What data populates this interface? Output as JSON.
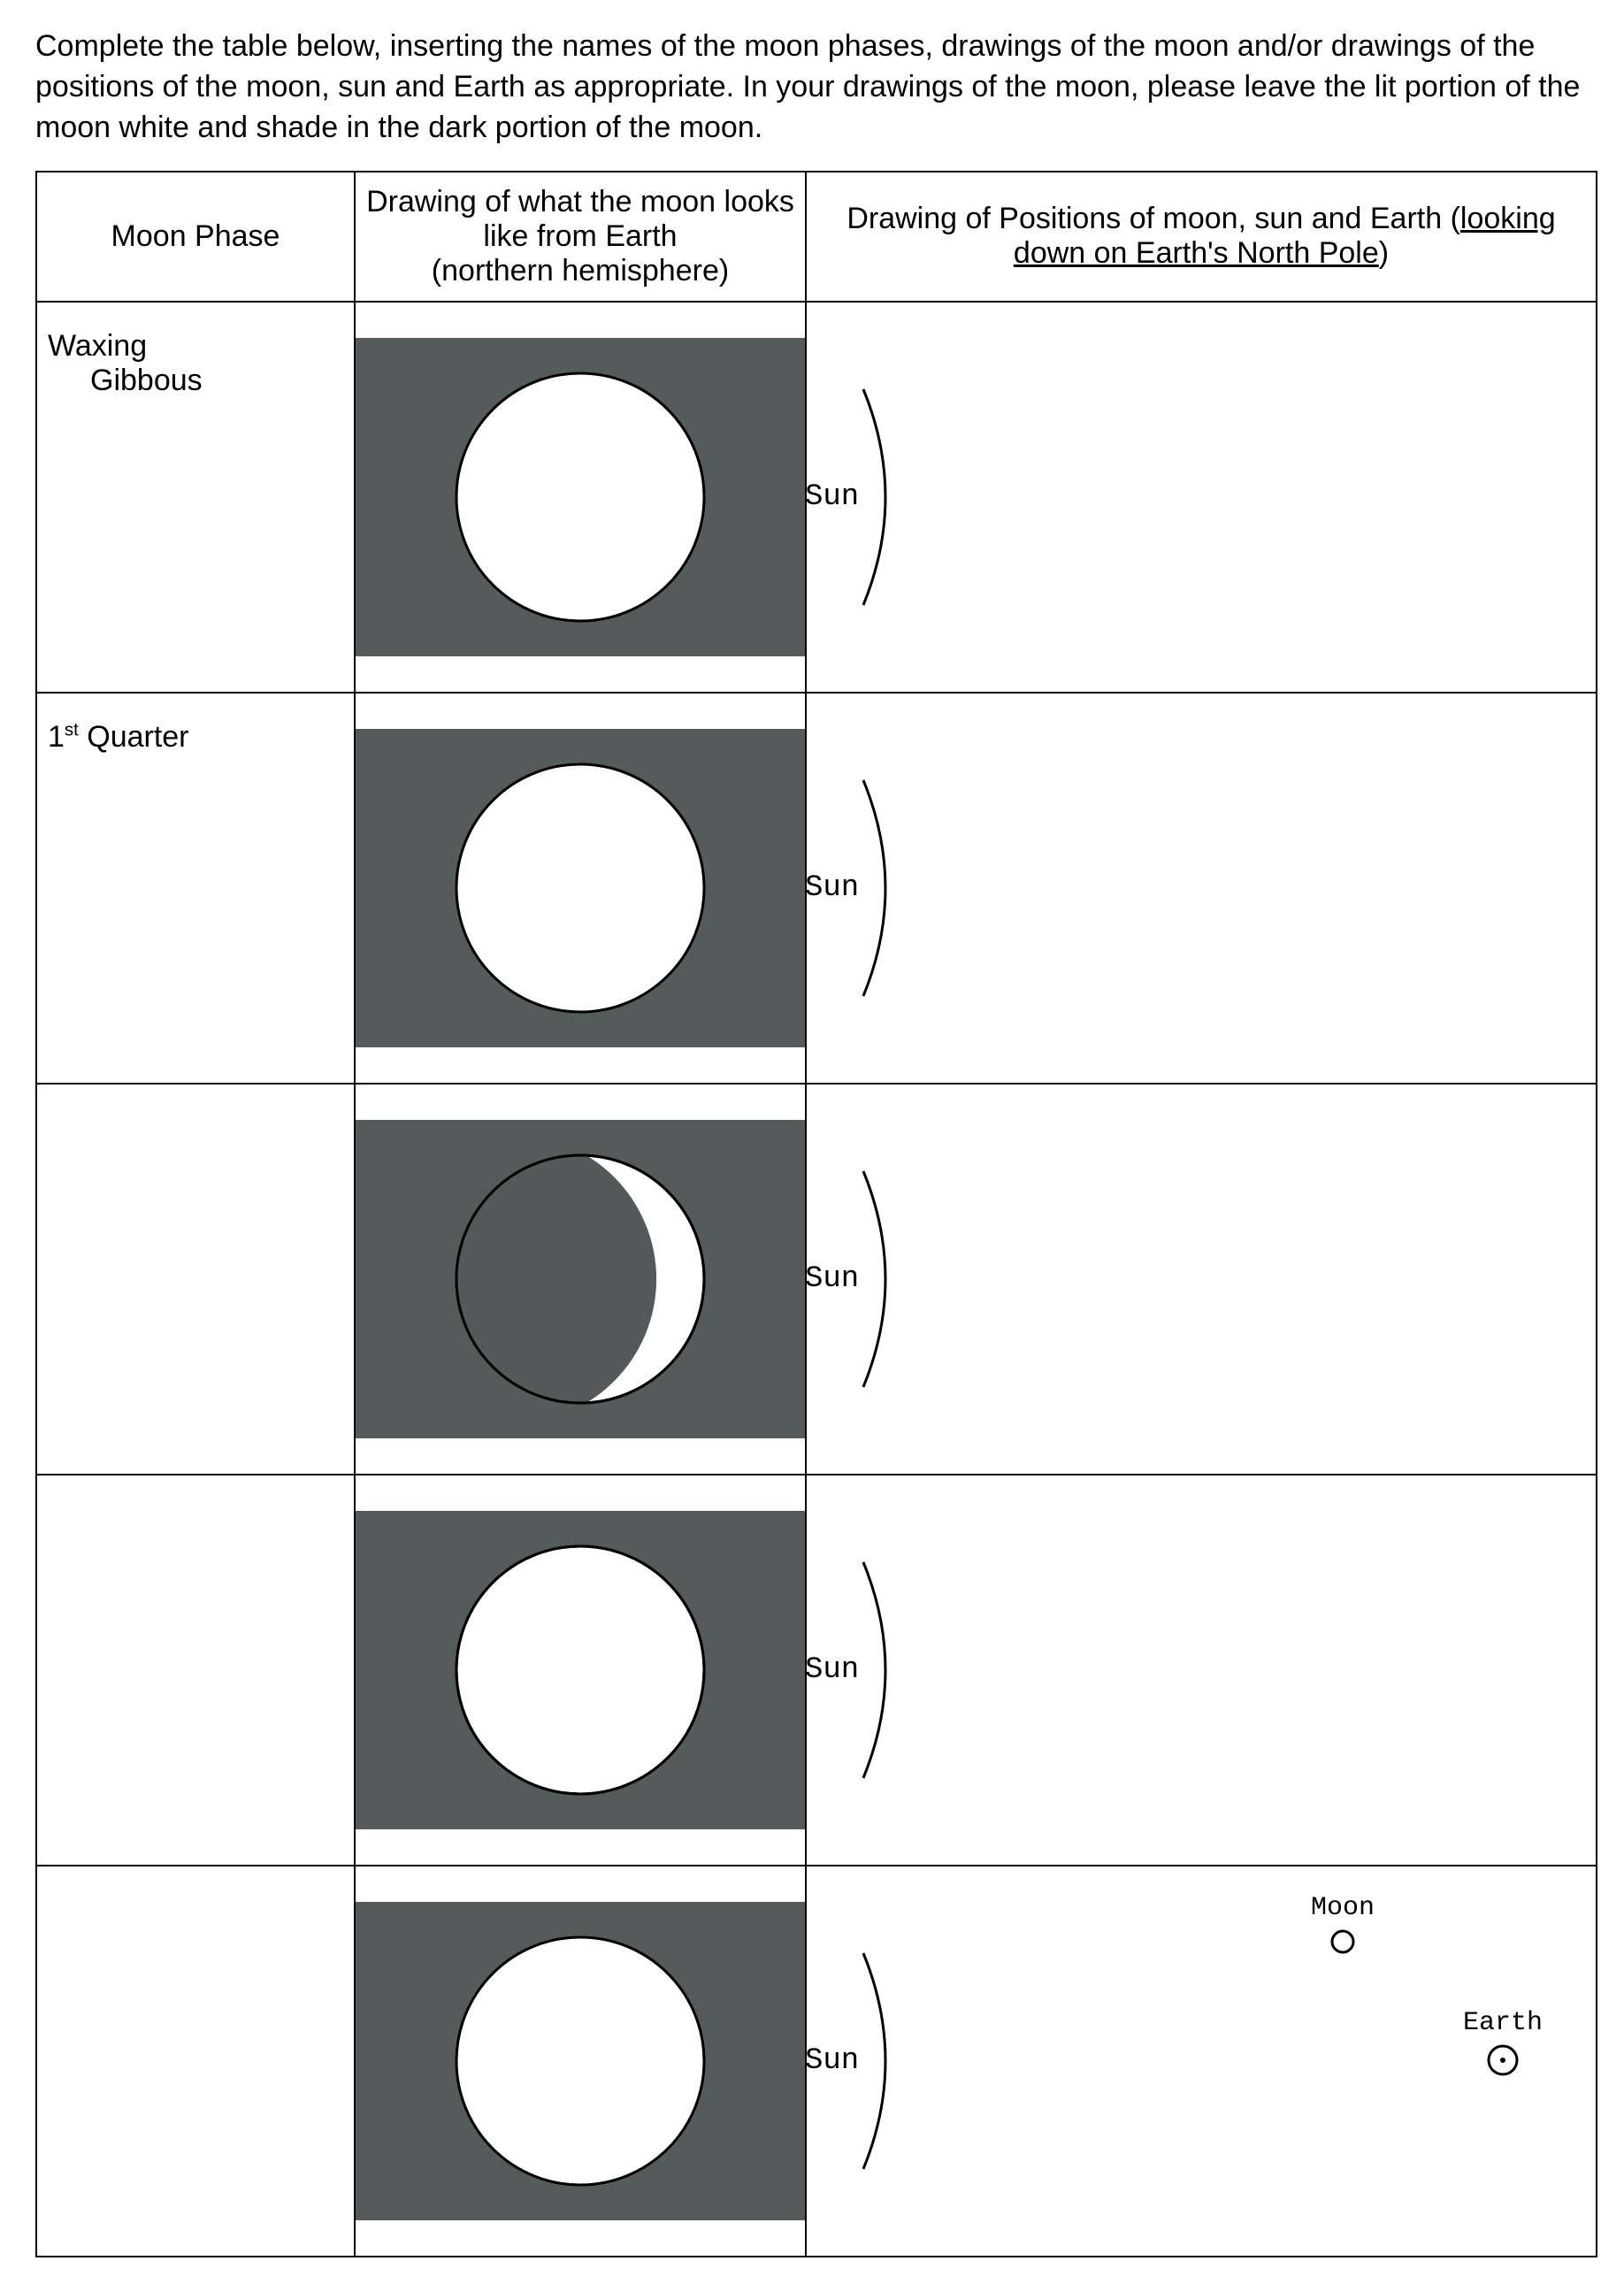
{
  "instructions": "Complete the table below, inserting the names of the moon phases, drawings of the moon and/or drawings of the positions of the moon, sun and Earth as appropriate. In your drawings of the moon, please leave the lit portion of the moon white and shade in the dark portion of the moon.",
  "table": {
    "headers": {
      "phase": "Moon Phase",
      "drawing_line1": "Drawing of what the moon looks like from Earth",
      "drawing_line2": "(northern hemisphere)",
      "positions_line1": "Drawing of Positions of moon, sun and Earth (",
      "positions_underlined": "looking down on Earth's North Pole",
      "positions_line2": ")"
    },
    "sun_label": "Sun",
    "moon_label": "Moon",
    "earth_label": "Earth"
  },
  "rows": [
    {
      "phase_label": "Waxing",
      "phase_label2": "Gibbous",
      "moon_type": "blank_circle",
      "show_moon_earth": false
    },
    {
      "phase_label": "1",
      "phase_sup": "st",
      "phase_after": " Quarter",
      "moon_type": "blank_circle",
      "show_moon_earth": false
    },
    {
      "phase_label": "",
      "moon_type": "waxing_crescent",
      "show_moon_earth": false
    },
    {
      "phase_label": "",
      "moon_type": "waning_gibbous",
      "show_moon_earth": false
    },
    {
      "phase_label": "",
      "moon_type": "blank_circle",
      "show_moon_earth": true
    }
  ],
  "style": {
    "moon_bg": "#555b5b",
    "moon_circle_stroke": "#000000",
    "moon_circle_fill_light": "#ffffff",
    "moon_circle_fill_dark": "#56595a",
    "circle_radius": 140,
    "svg_size": 320,
    "sun_arc_height": 260,
    "earth_dot_r": 16,
    "moon_dot_r": 12
  }
}
